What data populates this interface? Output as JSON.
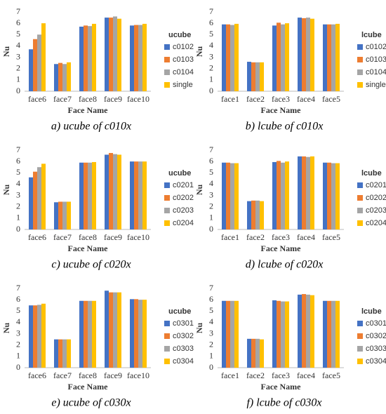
{
  "chart_data": [
    {
      "type": "bar",
      "caption": "a)  ucube  of  c010x",
      "x_label": "Face Name",
      "y_label": "Nu",
      "legend_title": "ucube",
      "categories": [
        "face6",
        "face7",
        "face8",
        "face9",
        "face10"
      ],
      "series": [
        {
          "name": "c0102",
          "color": "#4472c4",
          "values": [
            3.7,
            2.4,
            5.7,
            6.5,
            5.8
          ]
        },
        {
          "name": "c0103",
          "color": "#ed7d31",
          "values": [
            4.6,
            2.5,
            5.8,
            6.5,
            5.85
          ]
        },
        {
          "name": "c0104",
          "color": "#a5a5a5",
          "values": [
            5.0,
            2.4,
            5.75,
            6.6,
            5.85
          ]
        },
        {
          "name": "single",
          "color": "#ffc000",
          "values": [
            6.0,
            2.55,
            5.95,
            6.4,
            5.95
          ]
        }
      ],
      "ylim": [
        0,
        7
      ],
      "yticks": [
        0,
        1,
        2,
        3,
        4,
        5,
        6,
        7
      ],
      "grid": false
    },
    {
      "type": "bar",
      "caption": "b)  lcube  of  c010x",
      "x_label": "Face Name",
      "y_label": "Nu",
      "legend_title": "lcube",
      "categories": [
        "face1",
        "face2",
        "face3",
        "face4",
        "face5"
      ],
      "series": [
        {
          "name": "c0102",
          "color": "#4472c4",
          "values": [
            5.9,
            2.6,
            5.8,
            6.5,
            5.9
          ]
        },
        {
          "name": "c0103",
          "color": "#ed7d31",
          "values": [
            5.9,
            2.55,
            6.05,
            6.45,
            5.9
          ]
        },
        {
          "name": "c0104",
          "color": "#a5a5a5",
          "values": [
            5.85,
            2.55,
            5.9,
            6.5,
            5.9
          ]
        },
        {
          "name": "single",
          "color": "#ffc000",
          "values": [
            5.95,
            2.55,
            6.0,
            6.4,
            5.95
          ]
        }
      ],
      "ylim": [
        0,
        7
      ],
      "yticks": [
        0,
        1,
        2,
        3,
        4,
        5,
        6,
        7
      ],
      "grid": false
    },
    {
      "type": "bar",
      "caption": "c)  ucube  of  c020x",
      "x_label": "Face Name",
      "y_label": "Nu",
      "legend_title": "ucube",
      "categories": [
        "face6",
        "face7",
        "face8",
        "face9",
        "face10"
      ],
      "series": [
        {
          "name": "c0201",
          "color": "#4472c4",
          "values": [
            4.6,
            2.4,
            5.9,
            6.6,
            6.0
          ]
        },
        {
          "name": "c0202",
          "color": "#ed7d31",
          "values": [
            5.1,
            2.45,
            5.9,
            6.75,
            6.0
          ]
        },
        {
          "name": "c0203",
          "color": "#a5a5a5",
          "values": [
            5.5,
            2.45,
            5.9,
            6.65,
            6.0
          ]
        },
        {
          "name": "c0204",
          "color": "#ffc000",
          "values": [
            5.8,
            2.45,
            5.95,
            6.6,
            6.0
          ]
        }
      ],
      "ylim": [
        0,
        7
      ],
      "yticks": [
        0,
        1,
        2,
        3,
        4,
        5,
        6,
        7
      ],
      "grid": false
    },
    {
      "type": "bar",
      "caption": "d)  lcube  of  c020x",
      "x_label": "Face Name",
      "y_label": "Nu",
      "legend_title": "lcube",
      "categories": [
        "face1",
        "face2",
        "face3",
        "face4",
        "face5"
      ],
      "series": [
        {
          "name": "c0201",
          "color": "#4472c4",
          "values": [
            5.9,
            2.5,
            5.95,
            6.45,
            5.9
          ]
        },
        {
          "name": "c0202",
          "color": "#ed7d31",
          "values": [
            5.9,
            2.55,
            6.05,
            6.45,
            5.9
          ]
        },
        {
          "name": "c0203",
          "color": "#a5a5a5",
          "values": [
            5.85,
            2.55,
            5.9,
            6.4,
            5.85
          ]
        },
        {
          "name": "c0204",
          "color": "#ffc000",
          "values": [
            5.85,
            2.5,
            6.0,
            6.45,
            5.85
          ]
        }
      ],
      "ylim": [
        0,
        7
      ],
      "yticks": [
        0,
        1,
        2,
        3,
        4,
        5,
        6,
        7
      ],
      "grid": false
    },
    {
      "type": "bar",
      "caption": "e)  ucube  of  c030x",
      "x_label": "Face Name",
      "y_label": "Nu",
      "legend_title": "ucube",
      "categories": [
        "face6",
        "face7",
        "face8",
        "face9",
        "face10"
      ],
      "series": [
        {
          "name": "c0301",
          "color": "#4472c4",
          "values": [
            5.5,
            2.5,
            5.9,
            6.8,
            6.05
          ]
        },
        {
          "name": "c0302",
          "color": "#ed7d31",
          "values": [
            5.5,
            2.5,
            5.9,
            6.65,
            6.05
          ]
        },
        {
          "name": "c0303",
          "color": "#a5a5a5",
          "values": [
            5.55,
            2.5,
            5.9,
            6.65,
            6.0
          ]
        },
        {
          "name": "c0304",
          "color": "#ffc000",
          "values": [
            5.65,
            2.5,
            5.9,
            6.65,
            6.0
          ]
        }
      ],
      "ylim": [
        0,
        7
      ],
      "yticks": [
        0,
        1,
        2,
        3,
        4,
        5,
        6,
        7
      ],
      "grid": false
    },
    {
      "type": "bar",
      "caption": "f)  lcube  of  c030x",
      "x_label": "Face Name",
      "y_label": "Nu",
      "legend_title": "lcube",
      "categories": [
        "face1",
        "face2",
        "face3",
        "face4",
        "face5"
      ],
      "series": [
        {
          "name": "c0301",
          "color": "#4472c4",
          "values": [
            5.9,
            2.55,
            5.95,
            6.45,
            5.9
          ]
        },
        {
          "name": "c0302",
          "color": "#ed7d31",
          "values": [
            5.9,
            2.55,
            5.9,
            6.5,
            5.9
          ]
        },
        {
          "name": "c0303",
          "color": "#a5a5a5",
          "values": [
            5.9,
            2.55,
            5.85,
            6.45,
            5.9
          ]
        },
        {
          "name": "c0304",
          "color": "#ffc000",
          "values": [
            5.9,
            2.5,
            5.85,
            6.4,
            5.9
          ]
        }
      ],
      "ylim": [
        0,
        7
      ],
      "yticks": [
        0,
        1,
        2,
        3,
        4,
        5,
        6,
        7
      ],
      "grid": false
    }
  ]
}
